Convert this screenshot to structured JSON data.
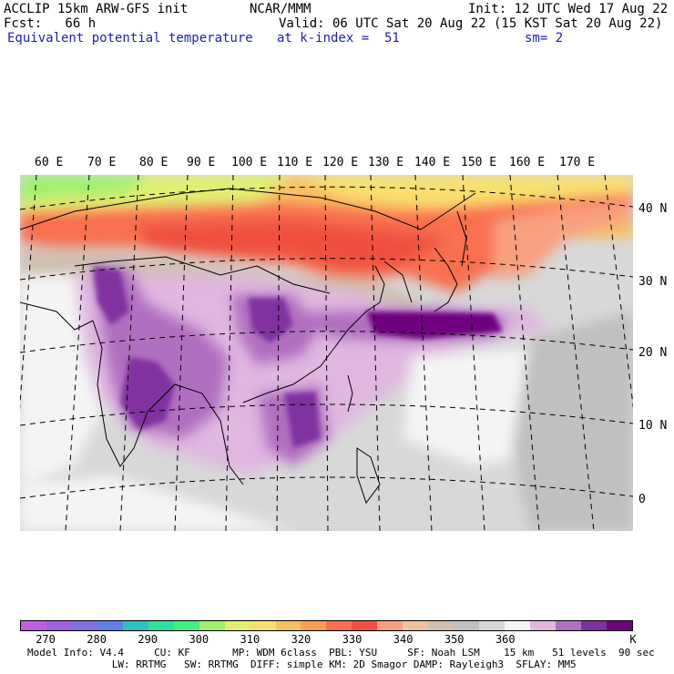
{
  "header": {
    "line1_left": "ACCLIP 15km ARW-GFS init",
    "line1_center": "NCAR/MMM",
    "line1_right": "Init: 12 UTC Wed 17 Aug 22",
    "line2_left": "Fcst:   66 h",
    "line2_right": "Valid: 06 UTC Sat 20 Aug 22 (15 KST Sat 20 Aug 22)",
    "line3_left": "Equivalent potential temperature",
    "line3_center": "at k-index =  51",
    "line3_right": "sm= 2"
  },
  "map": {
    "longitude_labels": [
      "60 E",
      "70 E",
      "80 E",
      "90 E",
      "100 E",
      "110 E",
      "120 E",
      "130 E",
      "140 E",
      "150 E",
      "160 E",
      "170 E"
    ],
    "latitude_labels": [
      "40 N",
      "30 N",
      "20 N",
      "10 N",
      "0"
    ],
    "field": "equivalent potential temperature",
    "unit": "K"
  },
  "colorbar": {
    "colors": [
      "#c060e0",
      "#a060e0",
      "#8070e0",
      "#6080e8",
      "#30c0c0",
      "#30e0a0",
      "#40f080",
      "#a0f070",
      "#e0f070",
      "#f8e070",
      "#f8c060",
      "#f8a050",
      "#f87050",
      "#f05040",
      "#f8a080",
      "#f0c0a0",
      "#d0c0b0",
      "#c0c0c0",
      "#d8d8d8",
      "#f4f4f4",
      "#e0b8e0",
      "#b070c0",
      "#8030a0",
      "#700080"
    ],
    "tick_labels": [
      "270",
      "280",
      "290",
      "300",
      "310",
      "320",
      "330",
      "340",
      "350",
      "360",
      "K"
    ]
  },
  "model_info": {
    "line1": "Model Info: V4.4     CU: KF       MP: WDM 6class  PBL: YSU     SF: Noah LSM    15 km   51 levels  90 sec",
    "line2": "              LW: RRTMG   SW: RRTMG  DIFF: simple KM: 2D Smagor DAMP: Rayleigh3  SFLAY: MM5"
  }
}
